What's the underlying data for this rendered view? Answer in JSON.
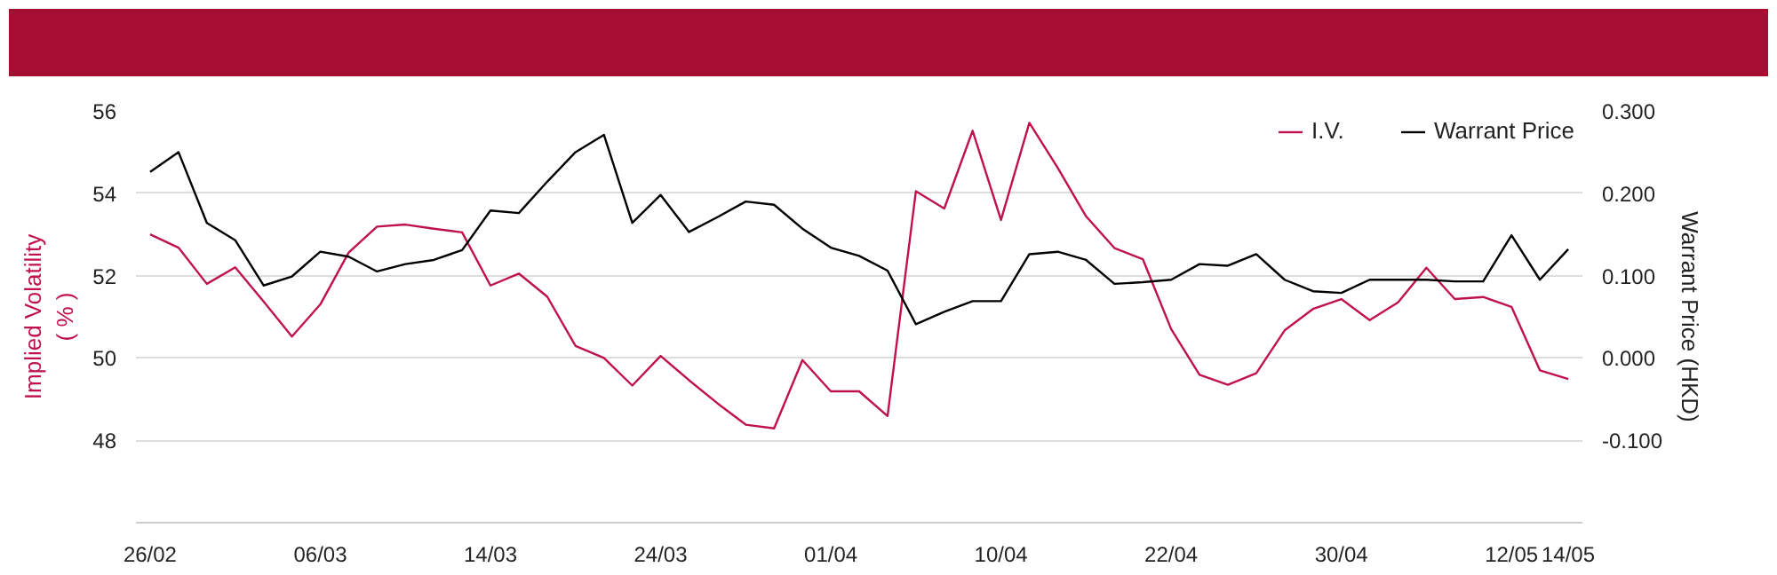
{
  "chart_data": {
    "type": "line",
    "categories": [
      "26/02",
      null,
      null,
      null,
      null,
      null,
      "06/03",
      null,
      null,
      null,
      null,
      null,
      "14/03",
      null,
      null,
      null,
      null,
      null,
      "24/03",
      null,
      null,
      null,
      null,
      null,
      "01/04",
      null,
      null,
      null,
      null,
      null,
      "10/04",
      null,
      null,
      null,
      null,
      null,
      "22/04",
      null,
      null,
      null,
      null,
      null,
      "30/04",
      null,
      null,
      null,
      null,
      null,
      "12/05",
      null,
      "14/05"
    ],
    "series": [
      {
        "name": "I.V.",
        "color": "#c0124a",
        "values": [
          53.0,
          52.68,
          51.8,
          52.2,
          51.37,
          50.52,
          51.3,
          52.56,
          53.19,
          53.24,
          53.14,
          53.05,
          51.76,
          52.05,
          51.49,
          50.29,
          50.0,
          49.33,
          50.05,
          49.46,
          48.9,
          48.38,
          48.29,
          49.95,
          49.19,
          49.19,
          48.59,
          54.05,
          53.63,
          55.52,
          53.35,
          55.71,
          54.62,
          53.44,
          52.67,
          52.4,
          50.7,
          49.59,
          49.35,
          49.63,
          50.67,
          51.19,
          51.43,
          50.92,
          51.35,
          52.19,
          51.43,
          51.48,
          51.24,
          49.7,
          49.49
        ]
      },
      {
        "name": "Warrant Price",
        "color": "#000000",
        "axis": "y2",
        "values": [
          0.226,
          0.25,
          0.164,
          0.143,
          0.088,
          0.099,
          0.129,
          0.123,
          0.105,
          0.114,
          0.119,
          0.131,
          0.179,
          0.176,
          0.214,
          0.25,
          0.271,
          0.164,
          0.198,
          0.153,
          0.171,
          0.19,
          0.186,
          0.157,
          0.134,
          0.124,
          0.106,
          0.041,
          0.056,
          0.069,
          0.069,
          0.126,
          0.129,
          0.119,
          0.09,
          0.092,
          0.095,
          0.114,
          0.112,
          0.126,
          0.095,
          0.081,
          0.079,
          0.095,
          0.095,
          0.095,
          0.093,
          0.093,
          0.149,
          0.095,
          0.132
        ]
      }
    ],
    "ylabel": "Implied Volatility\n( % )",
    "y2label": "Warrant Price (HKD)",
    "ylim": [
      46,
      56
    ],
    "yticks": [
      48,
      50,
      52,
      54,
      56
    ],
    "y2lim": [
      -0.2,
      0.3
    ],
    "y2ticks": [
      {
        "value": -0.1,
        "label": "-0.100"
      },
      {
        "value": 0.0,
        "label": "0.000"
      },
      {
        "value": 0.1,
        "label": "0.100"
      },
      {
        "value": 0.2,
        "label": "0.200"
      },
      {
        "value": 0.3,
        "label": "0.300"
      }
    ],
    "grid": "y",
    "legend": "top right",
    "marker": "none",
    "line_style": "solid"
  }
}
